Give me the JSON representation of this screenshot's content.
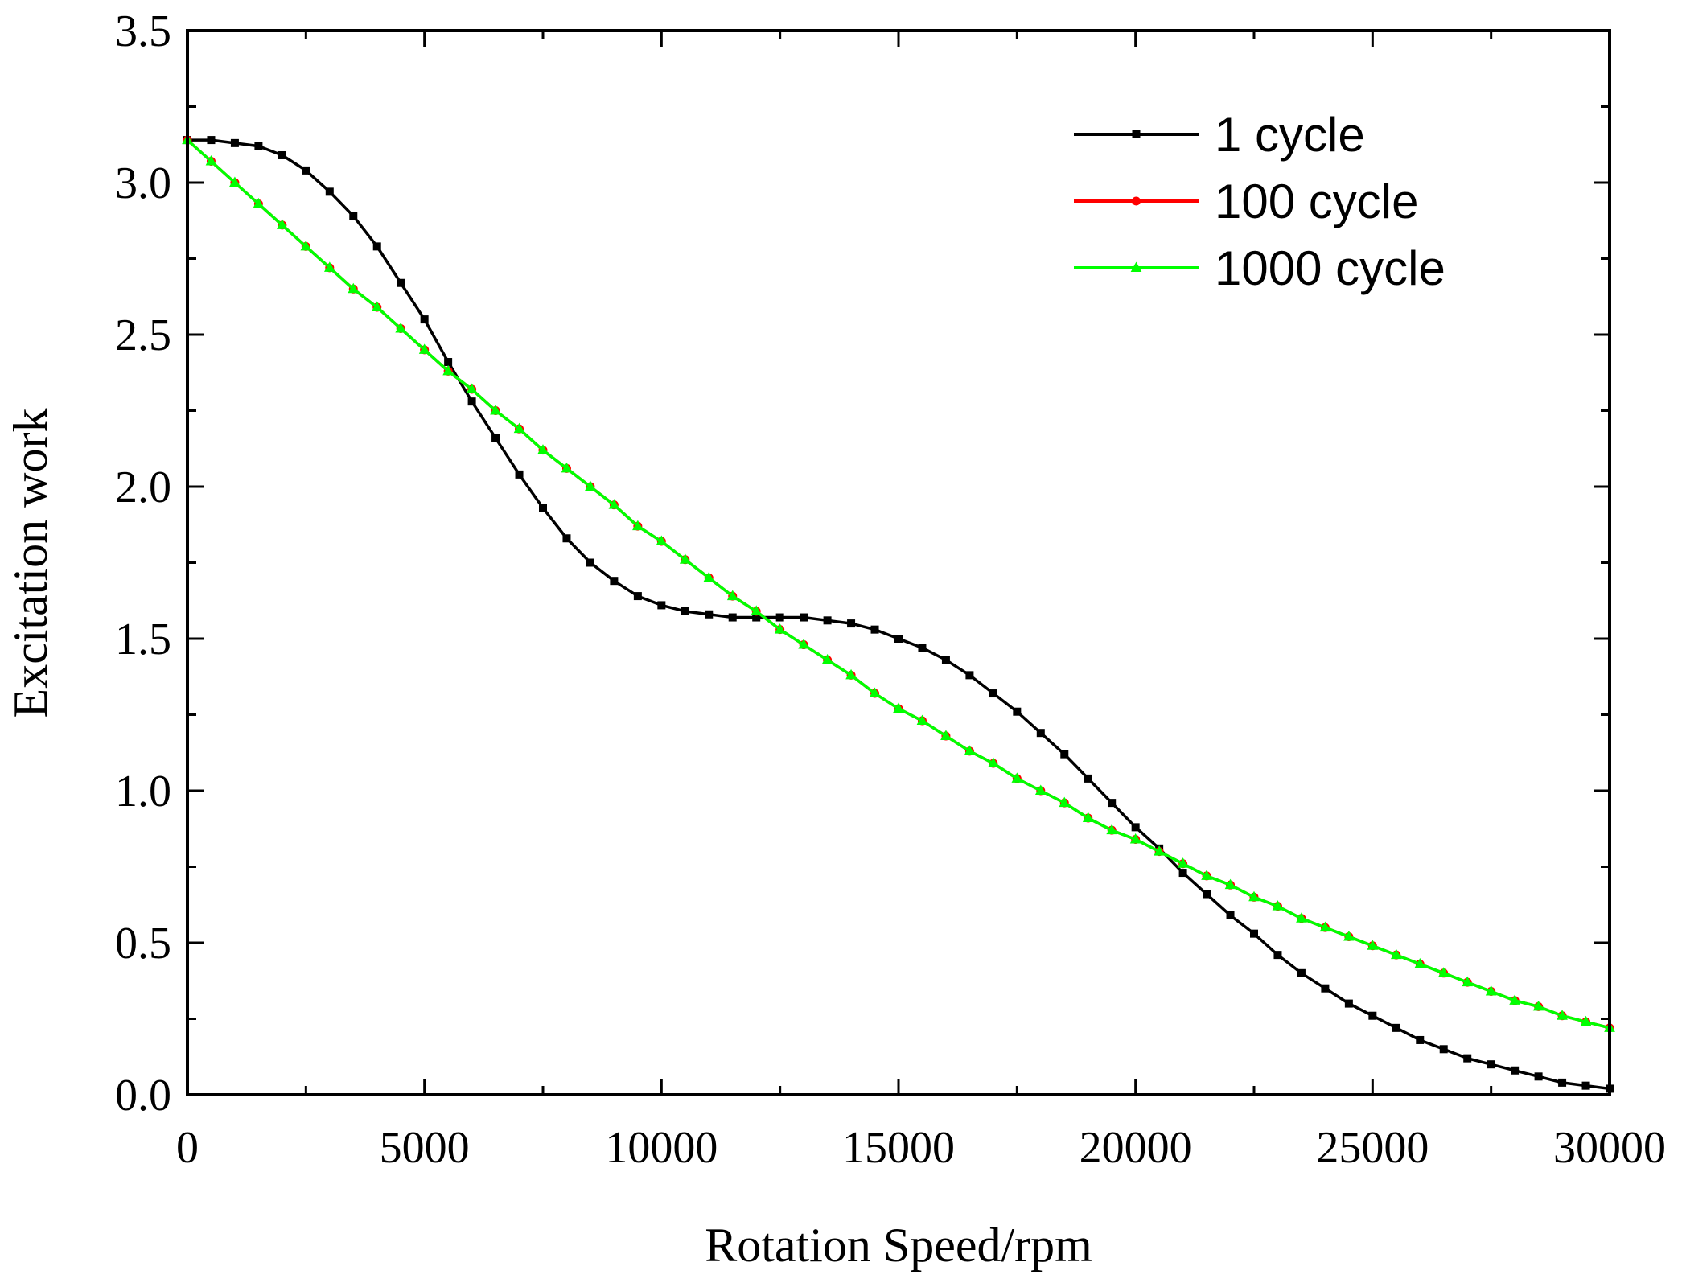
{
  "chart_data": {
    "type": "line",
    "title": "",
    "xlabel": "Rotation Speed/rpm",
    "ylabel": "Excitation work",
    "xlim": [
      0,
      30000
    ],
    "ylim": [
      0.0,
      3.5
    ],
    "xticks": [
      0,
      5000,
      10000,
      15000,
      20000,
      25000,
      30000
    ],
    "xtick_labels": [
      "0",
      "5000",
      "10000",
      "15000",
      "20000",
      "25000",
      "30000"
    ],
    "yticks": [
      0.0,
      0.5,
      1.0,
      1.5,
      2.0,
      2.5,
      3.0,
      3.5
    ],
    "ytick_labels": [
      "0.0",
      "0.5",
      "1.0",
      "1.5",
      "2.0",
      "2.5",
      "3.0",
      "3.5"
    ],
    "grid": false,
    "legend_position": "top-right",
    "series": [
      {
        "name": "1 cycle",
        "color": "#000000",
        "marker": "square",
        "x": [
          0,
          500,
          1000,
          1500,
          2000,
          2500,
          3000,
          3500,
          4000,
          4500,
          5000,
          5500,
          6000,
          6500,
          7000,
          7500,
          8000,
          8500,
          9000,
          9500,
          10000,
          10500,
          11000,
          11500,
          12000,
          12500,
          13000,
          13500,
          14000,
          14500,
          15000,
          15500,
          16000,
          16500,
          17000,
          17500,
          18000,
          18500,
          19000,
          19500,
          20000,
          20500,
          21000,
          21500,
          22000,
          22500,
          23000,
          23500,
          24000,
          24500,
          25000,
          25500,
          26000,
          26500,
          27000,
          27500,
          28000,
          28500,
          29000,
          29500,
          30000
        ],
        "values": [
          3.14,
          3.14,
          3.13,
          3.12,
          3.09,
          3.04,
          2.97,
          2.89,
          2.79,
          2.67,
          2.55,
          2.41,
          2.28,
          2.16,
          2.04,
          1.93,
          1.83,
          1.75,
          1.69,
          1.64,
          1.61,
          1.59,
          1.58,
          1.57,
          1.57,
          1.57,
          1.57,
          1.56,
          1.55,
          1.53,
          1.5,
          1.47,
          1.43,
          1.38,
          1.32,
          1.26,
          1.19,
          1.12,
          1.04,
          0.96,
          0.88,
          0.81,
          0.73,
          0.66,
          0.59,
          0.53,
          0.46,
          0.4,
          0.35,
          0.3,
          0.26,
          0.22,
          0.18,
          0.15,
          0.12,
          0.1,
          0.08,
          0.06,
          0.04,
          0.03,
          0.02
        ]
      },
      {
        "name": "100 cycle",
        "color": "#ff0000",
        "marker": "circle",
        "x": [
          0,
          500,
          1000,
          1500,
          2000,
          2500,
          3000,
          3500,
          4000,
          4500,
          5000,
          5500,
          6000,
          6500,
          7000,
          7500,
          8000,
          8500,
          9000,
          9500,
          10000,
          10500,
          11000,
          11500,
          12000,
          12500,
          13000,
          13500,
          14000,
          14500,
          15000,
          15500,
          16000,
          16500,
          17000,
          17500,
          18000,
          18500,
          19000,
          19500,
          20000,
          20500,
          21000,
          21500,
          22000,
          22500,
          23000,
          23500,
          24000,
          24500,
          25000,
          25500,
          26000,
          26500,
          27000,
          27500,
          28000,
          28500,
          29000,
          29500,
          30000
        ],
        "values": [
          3.14,
          3.07,
          3.0,
          2.93,
          2.86,
          2.79,
          2.72,
          2.65,
          2.59,
          2.52,
          2.45,
          2.38,
          2.32,
          2.25,
          2.19,
          2.12,
          2.06,
          2.0,
          1.94,
          1.87,
          1.82,
          1.76,
          1.7,
          1.64,
          1.59,
          1.53,
          1.48,
          1.43,
          1.38,
          1.32,
          1.27,
          1.23,
          1.18,
          1.13,
          1.09,
          1.04,
          1.0,
          0.96,
          0.91,
          0.87,
          0.84,
          0.8,
          0.76,
          0.72,
          0.69,
          0.65,
          0.62,
          0.58,
          0.55,
          0.52,
          0.49,
          0.46,
          0.43,
          0.4,
          0.37,
          0.34,
          0.31,
          0.29,
          0.26,
          0.24,
          0.22
        ]
      },
      {
        "name": "1000 cycle",
        "color": "#00ff00",
        "marker": "triangle",
        "x": [
          0,
          500,
          1000,
          1500,
          2000,
          2500,
          3000,
          3500,
          4000,
          4500,
          5000,
          5500,
          6000,
          6500,
          7000,
          7500,
          8000,
          8500,
          9000,
          9500,
          10000,
          10500,
          11000,
          11500,
          12000,
          12500,
          13000,
          13500,
          14000,
          14500,
          15000,
          15500,
          16000,
          16500,
          17000,
          17500,
          18000,
          18500,
          19000,
          19500,
          20000,
          20500,
          21000,
          21500,
          22000,
          22500,
          23000,
          23500,
          24000,
          24500,
          25000,
          25500,
          26000,
          26500,
          27000,
          27500,
          28000,
          28500,
          29000,
          29500,
          30000
        ],
        "values": [
          3.14,
          3.07,
          3.0,
          2.93,
          2.86,
          2.79,
          2.72,
          2.65,
          2.59,
          2.52,
          2.45,
          2.38,
          2.32,
          2.25,
          2.19,
          2.12,
          2.06,
          2.0,
          1.94,
          1.87,
          1.82,
          1.76,
          1.7,
          1.64,
          1.59,
          1.53,
          1.48,
          1.43,
          1.38,
          1.32,
          1.27,
          1.23,
          1.18,
          1.13,
          1.09,
          1.04,
          1.0,
          0.96,
          0.91,
          0.87,
          0.84,
          0.8,
          0.76,
          0.72,
          0.69,
          0.65,
          0.62,
          0.58,
          0.55,
          0.52,
          0.49,
          0.46,
          0.43,
          0.4,
          0.37,
          0.34,
          0.31,
          0.29,
          0.26,
          0.24,
          0.22
        ]
      }
    ]
  }
}
